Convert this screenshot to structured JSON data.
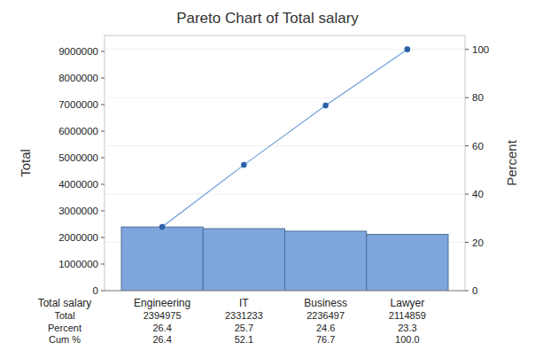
{
  "chart_data": {
    "type": "pareto",
    "title": "Pareto Chart of Total salary",
    "x_label": "Total salary",
    "y_label": "Total",
    "y2_label": "Percent",
    "categories": [
      "Engineering",
      "IT",
      "Business",
      "Lawyer"
    ],
    "series": [
      {
        "name": "Total",
        "type": "bar",
        "color": "#7ea6dc",
        "values": [
          2394975,
          2331233,
          2236497,
          2114859
        ]
      },
      {
        "name": "Percent",
        "type": "table",
        "values": [
          26.4,
          25.7,
          24.6,
          23.3
        ]
      },
      {
        "name": "Cum %",
        "type": "line",
        "axis": "y2",
        "color": "#2a62a8",
        "marker": "circle",
        "values": [
          26.4,
          52.1,
          76.7,
          100
        ],
        "value_labels": [
          "26.4",
          "52.1",
          "76.7",
          "100.0"
        ]
      }
    ],
    "ylim": [
      0,
      9600000
    ],
    "yticks": [
      0,
      1000000,
      2000000,
      3000000,
      4000000,
      5000000,
      6000000,
      7000000,
      8000000,
      9000000
    ],
    "y2lim": [
      0,
      105.75
    ],
    "y2ticks": [
      0,
      20,
      40,
      60,
      80,
      100
    ],
    "grid": true
  }
}
